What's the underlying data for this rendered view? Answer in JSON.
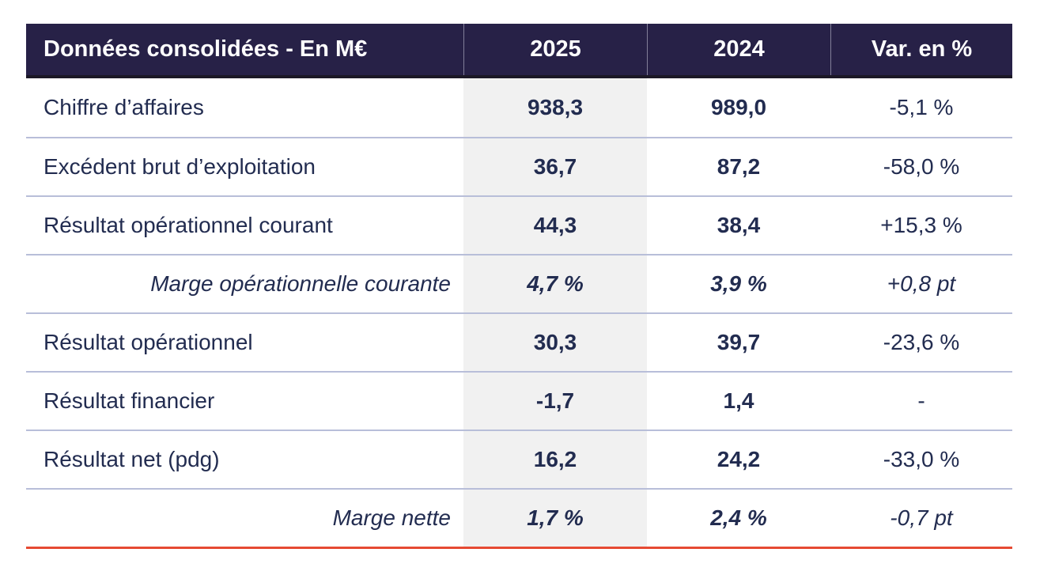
{
  "table": {
    "header": {
      "label": "Données consolidées - En M€",
      "col_2025": "2025",
      "col_2024": "2024",
      "col_var": "Var. en %"
    },
    "rows": [
      {
        "label": "Chiffre d’affaires",
        "v2025": "938,3",
        "v2024": "989,0",
        "var": "-5,1 %",
        "italic": false
      },
      {
        "label": "Excédent brut d’exploitation",
        "v2025": "36,7",
        "v2024": "87,2",
        "var": "-58,0 %",
        "italic": false
      },
      {
        "label": "Résultat opérationnel courant",
        "v2025": "44,3",
        "v2024": "38,4",
        "var": "+15,3 %",
        "italic": false
      },
      {
        "label": "Marge opérationnelle courante",
        "v2025": "4,7 %",
        "v2024": "3,9 %",
        "var": "+0,8 pt",
        "italic": true
      },
      {
        "label": "Résultat opérationnel",
        "v2025": "30,3",
        "v2024": "39,7",
        "var": "-23,6 %",
        "italic": false
      },
      {
        "label": "Résultat financier",
        "v2025": "-1,7",
        "v2024": "1,4",
        "var": "-",
        "italic": false
      },
      {
        "label": "Résultat net (pdg)",
        "v2025": "16,2",
        "v2024": "24,2",
        "var": "-33,0 %",
        "italic": false
      },
      {
        "label": "Marge nette",
        "v2025": "1,7 %",
        "v2024": "2,4 %",
        "var": "-0,7 pt",
        "italic": true
      }
    ],
    "colors": {
      "header_bg": "#272147",
      "header_underline": "#1b1826",
      "text": "#222c50",
      "highlight_column_bg": "#f1f1f1",
      "row_divider": "#b8bed9",
      "bottom_line": "#e64a33"
    }
  },
  "chart_data": {
    "type": "table",
    "title": "Données consolidées - En M€",
    "columns": [
      "Données consolidées - En M€",
      "2025",
      "2024",
      "Var. en %"
    ],
    "rows": [
      [
        "Chiffre d’affaires",
        "938,3",
        "989,0",
        "-5,1 %"
      ],
      [
        "Excédent brut d’exploitation",
        "36,7",
        "87,2",
        "-58,0 %"
      ],
      [
        "Résultat opérationnel courant",
        "44,3",
        "38,4",
        "+15,3 %"
      ],
      [
        "Marge opérationnelle courante",
        "4,7 %",
        "3,9 %",
        "+0,8 pt"
      ],
      [
        "Résultat opérationnel",
        "30,3",
        "39,7",
        "-23,6 %"
      ],
      [
        "Résultat financier",
        "-1,7",
        "1,4",
        "-"
      ],
      [
        "Résultat net (pdg)",
        "16,2",
        "24,2",
        "-33,0 %"
      ],
      [
        "Marge nette",
        "1,7 %",
        "2,4 %",
        "-0,7 pt"
      ]
    ],
    "layout_hints": {
      "highlighted_column": "2025",
      "italic_rows": [
        "Marge opérationnelle courante",
        "Marge nette"
      ],
      "numeric_columns_bold": [
        "2025",
        "2024"
      ]
    }
  }
}
